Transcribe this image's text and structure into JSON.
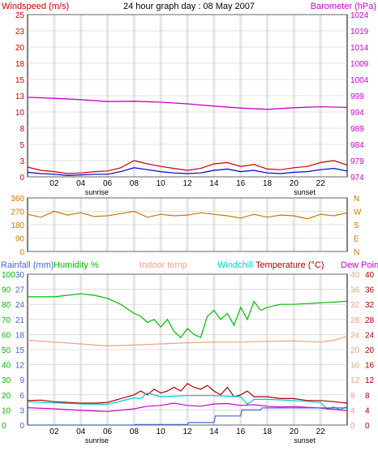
{
  "colors": {
    "wind": "#cc0000",
    "gust": "#0000cc",
    "baro": "#cc00cc",
    "dir": "#cc7700",
    "rain": "#4466cc",
    "hum": "#00bb00",
    "indoor": "#f0a080",
    "chill": "#00cccc",
    "temp": "#aa0000",
    "dew": "#cc00cc",
    "grid": "#c8c8c8",
    "sunband": "#e6e6e6"
  },
  "chart_data": [
    {
      "type": "line",
      "title": "24 hour graph day : 08 May 2007",
      "ylabel_left": "Windspeed (m/s)",
      "ylabel_right": "Barometer (hPa)",
      "left_ticks": [
        "25",
        "23",
        "20",
        "18",
        "15",
        "13",
        "10",
        "8",
        "5",
        "3",
        "0"
      ],
      "right_ticks": [
        "1024",
        "1019",
        "1014",
        "1009",
        "1004",
        "999",
        "994",
        "989",
        "984",
        "979",
        "974"
      ],
      "x_ticks": [
        "02",
        "04",
        "06",
        "08",
        "10",
        "12",
        "14",
        "16",
        "18",
        "20",
        "22"
      ],
      "sunrise_label": "sunrise",
      "sunset_label": "sunset",
      "ylim_left": [
        0,
        25
      ],
      "ylim_right": [
        974,
        1024
      ],
      "series": [
        {
          "key": "barometer",
          "axis": "right",
          "x": [
            0,
            2,
            4,
            6,
            8,
            10,
            12,
            14,
            16,
            18,
            20,
            22,
            24
          ],
          "values": [
            998.5,
            998.2,
            997.8,
            997.2,
            997.3,
            997.0,
            996.5,
            995.8,
            995.2,
            994.8,
            995.3,
            995.6,
            995.4
          ]
        },
        {
          "key": "wind",
          "axis": "left",
          "x": [
            0,
            1,
            2,
            3,
            4,
            5,
            6,
            7,
            8,
            9,
            10,
            11,
            12,
            13,
            14,
            15,
            16,
            17,
            18,
            19,
            20,
            21,
            22,
            23,
            24
          ],
          "values": [
            1.5,
            1.0,
            0.8,
            0.5,
            0.6,
            0.8,
            0.9,
            1.4,
            2.5,
            2.0,
            1.6,
            1.3,
            1.0,
            1.3,
            2.0,
            2.2,
            1.6,
            1.9,
            1.2,
            1.1,
            1.4,
            1.6,
            2.2,
            2.5,
            1.8
          ]
        },
        {
          "key": "gust",
          "axis": "left",
          "x": [
            0,
            1,
            2,
            3,
            4,
            5,
            6,
            7,
            8,
            9,
            10,
            11,
            12,
            13,
            14,
            15,
            16,
            17,
            18,
            19,
            20,
            21,
            22,
            23,
            24
          ],
          "values": [
            0.7,
            0.5,
            0.4,
            0.2,
            0.3,
            0.4,
            0.4,
            0.8,
            1.4,
            1.1,
            0.8,
            0.6,
            0.5,
            0.6,
            1.0,
            1.2,
            0.8,
            1.0,
            0.6,
            0.5,
            0.7,
            0.8,
            1.1,
            1.3,
            0.9
          ]
        }
      ]
    },
    {
      "type": "line",
      "left_ticks": [
        "360",
        "270",
        "180",
        "90",
        "0"
      ],
      "right_ticks": [
        "N",
        "W",
        "S",
        "E",
        "N"
      ],
      "ylim": [
        0,
        360
      ],
      "series": [
        {
          "key": "direction",
          "x": [
            0,
            1,
            2,
            3,
            4,
            5,
            6,
            7,
            8,
            9,
            10,
            11,
            12,
            13,
            14,
            15,
            16,
            17,
            18,
            19,
            20,
            21,
            22,
            23,
            24
          ],
          "values": [
            250,
            230,
            270,
            245,
            260,
            235,
            240,
            255,
            270,
            230,
            250,
            240,
            245,
            260,
            250,
            240,
            225,
            250,
            230,
            245,
            240,
            220,
            250,
            240,
            260
          ]
        }
      ]
    },
    {
      "type": "line",
      "legend": [
        "Rainfall (mm)",
        "Humidity %",
        "Indoor temp",
        "Windchill",
        "Temperature (°C)",
        "Dew Point"
      ],
      "rain_ticks": [
        "30",
        "27",
        "24",
        "21",
        "18",
        "15",
        "12",
        "9",
        "6",
        "3",
        "0"
      ],
      "hum_ticks": [
        "100",
        "90",
        "80",
        "70",
        "60",
        "50",
        "40",
        "30",
        "20",
        "10",
        "0"
      ],
      "indoor_ticks": [
        "40",
        "36",
        "32",
        "28",
        "24",
        "20",
        "16",
        "12",
        "8",
        "4",
        "0"
      ],
      "temp_ticks": [
        "40",
        "36",
        "32",
        "28",
        "24",
        "20",
        "16",
        "12",
        "8",
        "4",
        "0"
      ],
      "x_ticks": [
        "02",
        "04",
        "06",
        "08",
        "10",
        "12",
        "14",
        "16",
        "18",
        "20",
        "22"
      ],
      "sunrise_label": "sunrise",
      "sunset_label": "sunset",
      "ylim_left": [
        0,
        100
      ],
      "ylim_right": [
        0,
        40
      ],
      "series": [
        {
          "key": "humidity",
          "axis": "left",
          "x": [
            0,
            2,
            3,
            4,
            5,
            6,
            7,
            8,
            8.5,
            9,
            9.5,
            10,
            10.5,
            11,
            11.5,
            12,
            12.5,
            13,
            13.5,
            14,
            14.5,
            15,
            15.5,
            16,
            16.5,
            17,
            17.5,
            18,
            19,
            20,
            22,
            24
          ],
          "values": [
            85,
            85,
            86,
            87,
            86,
            84,
            80,
            74,
            72,
            68,
            70,
            65,
            70,
            62,
            58,
            64,
            60,
            58,
            72,
            76,
            70,
            74,
            66,
            78,
            70,
            82,
            76,
            78,
            80,
            80,
            81,
            82
          ]
        },
        {
          "key": "indoor",
          "axis": "right",
          "x": [
            0,
            2,
            4,
            6,
            8,
            10,
            12,
            14,
            16,
            18,
            20,
            22,
            23,
            24
          ],
          "values": [
            22.5,
            22.0,
            21.5,
            21.0,
            21.2,
            21.5,
            21.8,
            22.0,
            22.0,
            22.2,
            22.3,
            22.0,
            22.5,
            23.5
          ]
        },
        {
          "key": "temp",
          "axis": "right",
          "x": [
            0,
            1,
            2,
            3,
            4,
            5,
            6,
            7,
            8,
            8.5,
            9,
            9.5,
            10,
            10.5,
            11,
            11.5,
            12,
            12.5,
            13,
            13.5,
            14,
            14.5,
            15,
            15.5,
            16,
            16.5,
            17,
            18,
            19,
            20,
            21,
            22,
            23,
            24
          ],
          "values": [
            6.5,
            6.6,
            6.2,
            6.0,
            5.8,
            5.8,
            6.0,
            7.0,
            8.0,
            9.0,
            8.0,
            9.5,
            8.5,
            9.0,
            10.0,
            9.0,
            11.0,
            10.0,
            9.5,
            10.5,
            9.0,
            8.0,
            10.0,
            7.5,
            8.0,
            9.0,
            7.5,
            7.5,
            7.0,
            7.0,
            6.5,
            6.5,
            6.2,
            5.8
          ]
        },
        {
          "key": "windchill",
          "axis": "right",
          "x": [
            0,
            2,
            4,
            6,
            8,
            8.5,
            9,
            10,
            12,
            14,
            16,
            16.5,
            17,
            18,
            20,
            22,
            22.5,
            23,
            23.5,
            24
          ],
          "values": [
            6.2,
            5.9,
            5.6,
            5.5,
            7.2,
            7.0,
            8.5,
            7.5,
            7.8,
            7.8,
            7.5,
            5.5,
            6.8,
            6.8,
            6.5,
            6.0,
            4.2,
            4.8,
            4.0,
            5.0
          ]
        },
        {
          "key": "dewpoint",
          "axis": "right",
          "x": [
            0,
            2,
            4,
            6,
            8,
            9,
            10,
            11,
            12,
            13,
            14,
            15,
            16,
            17,
            18,
            19,
            20,
            22,
            24
          ],
          "values": [
            4.6,
            4.3,
            3.9,
            3.6,
            4.3,
            5.0,
            5.2,
            5.8,
            5.2,
            5.0,
            5.6,
            5.7,
            5.2,
            5.4,
            5.0,
            4.8,
            4.9,
            4.5,
            3.8
          ]
        },
        {
          "key": "rain",
          "axis": "rain",
          "x": [
            0,
            8,
            8.1,
            12,
            12.1,
            14,
            14.1,
            16,
            16.1,
            17.5,
            17.6,
            24
          ],
          "values": [
            0,
            0,
            0.1,
            0.1,
            0.5,
            0.5,
            1.8,
            1.8,
            3.0,
            3.0,
            3.4,
            3.4
          ]
        }
      ]
    }
  ]
}
